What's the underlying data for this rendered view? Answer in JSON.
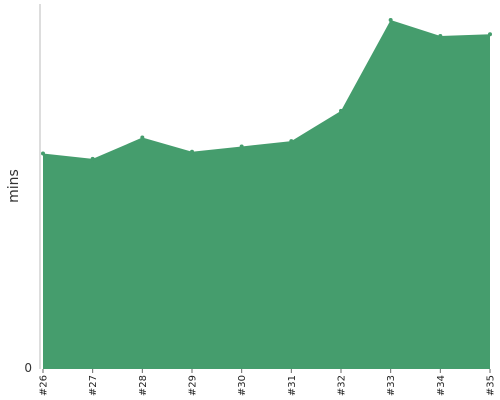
{
  "chart_data": {
    "type": "area",
    "categories": [
      "#26",
      "#27",
      "#28",
      "#29",
      "#30",
      "#31",
      "#32",
      "#33",
      "#34",
      "#35"
    ],
    "series": [
      {
        "values": [
          12.1,
          11.8,
          13.0,
          12.2,
          12.5,
          12.8,
          14.5,
          19.6,
          18.7,
          18.8
        ]
      }
    ],
    "ylabel": "mins",
    "y_ticks": [
      "0"
    ],
    "ylim": [
      0,
      20.5
    ],
    "grid": false,
    "legend": "none",
    "colors": {
      "area": "#459d6d",
      "axis": "#bbbbbb"
    }
  }
}
